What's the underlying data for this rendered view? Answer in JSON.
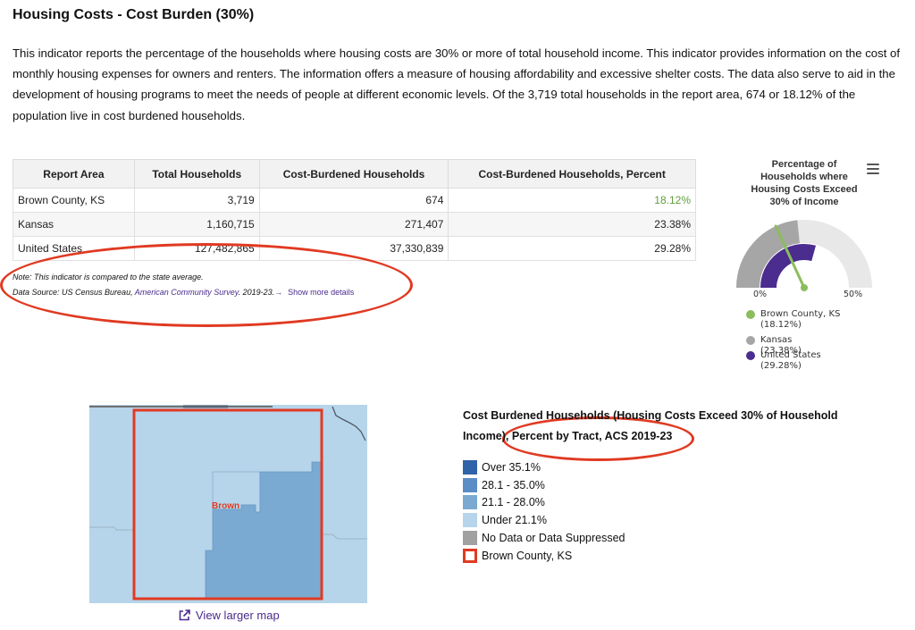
{
  "title": "Housing Costs - Cost Burden (30%)",
  "description": "This indicator reports the percentage of the households where housing costs are 30% or more of total household income. This indicator provides information on the cost of monthly housing expenses for owners and renters. The information offers a measure of housing affordability and excessive shelter costs. The data also serve to aid in the development of housing programs to meet the needs of people at different economic levels. Of the 3,719 total households in the report area, 674 or 18.12% of the population live in cost burdened households.",
  "table": {
    "headers": [
      "Report Area",
      "Total Households",
      "Cost-Burdened Households",
      "Cost-Burdened Households, Percent"
    ],
    "rows": [
      {
        "area": "Brown County, KS",
        "total": "3,719",
        "burdened": "674",
        "percent": "18.12%"
      },
      {
        "area": "Kansas",
        "total": "1,160,715",
        "burdened": "271,407",
        "percent": "23.38%"
      },
      {
        "area": "United States",
        "total": "127,482,865",
        "burdened": "37,330,839",
        "percent": "29.28%"
      }
    ]
  },
  "note": "Note: This indicator is compared to the state average.",
  "source": {
    "prefix": "Data Source: US Census Bureau, ",
    "link": "American Community Survey",
    "suffix": ". 2019-23.",
    "arrow": "→",
    "more": "Show more details"
  },
  "gauge": {
    "title": "Percentage of Households where Housing Costs Exceed 30% of Income",
    "min_label": "0%",
    "max_label": "50%",
    "min": 0,
    "max": 50,
    "needle_value": 18.12,
    "series": [
      {
        "label": "Brown County, KS",
        "value_label": "(18.12%)",
        "value": 18.12,
        "color": "#8bbd5c"
      },
      {
        "label": "Kansas",
        "value_label": "(23.38%)",
        "value": 23.38,
        "color": "#a6a6a6"
      },
      {
        "label": "United States",
        "value_label": "(29.28%)",
        "value": 29.28,
        "color": "#4b2c8f"
      }
    ],
    "track_color": "#e8e8e8"
  },
  "map": {
    "county_label": "Brown",
    "view_larger": "View larger map"
  },
  "legend": {
    "title": "Cost Burdened Households (Housing Costs Exceed 30% of Household Income), Percent by Tract, ACS 2019-23",
    "items": [
      {
        "label": "Over 35.1%",
        "color": "#2f63a9"
      },
      {
        "label": "28.1 - 35.0%",
        "color": "#5b8dc6"
      },
      {
        "label": "21.1 - 28.0%",
        "color": "#7aaad2"
      },
      {
        "label": "Under 21.1%",
        "color": "#b6d5ea"
      },
      {
        "label": "No Data or Data Suppressed",
        "color": "#a1a1a1"
      },
      {
        "label": "Brown County, KS",
        "color": "#e03a22"
      }
    ]
  },
  "colors": {
    "annotation": "#e03a22",
    "link": "#4a2b8c"
  }
}
